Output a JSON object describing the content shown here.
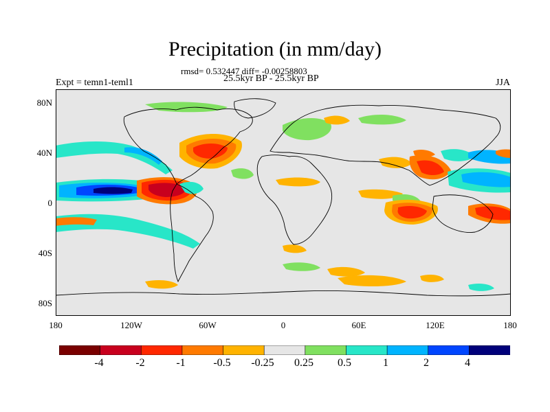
{
  "title": "Precipitation (in mm/day)",
  "subtitle": "rmsd= 0.532447 diff= -0.00258803",
  "date_range": "25.5kyr BP - 25.5kyr BP",
  "experiment": "Expt = temn1-teml1",
  "season": "JJA",
  "lat_labels": [
    "80N",
    "40N",
    "0",
    "40S",
    "80S"
  ],
  "lon_labels": [
    "180",
    "120W",
    "60W",
    "0",
    "60E",
    "120E",
    "180"
  ],
  "colorbar": {
    "labels": [
      "-4",
      "-2",
      "-1",
      "-0.5",
      "-0.25",
      "0.25",
      "0.5",
      "1",
      "2",
      "4"
    ],
    "colors": [
      "#7a0000",
      "#c8001e",
      "#ff2800",
      "#ff7a00",
      "#ffb300",
      "#e6e6e6",
      "#80e060",
      "#28e6c8",
      "#00b4ff",
      "#0046ff",
      "#00007a"
    ]
  },
  "background_color": "#e6e6e6"
}
